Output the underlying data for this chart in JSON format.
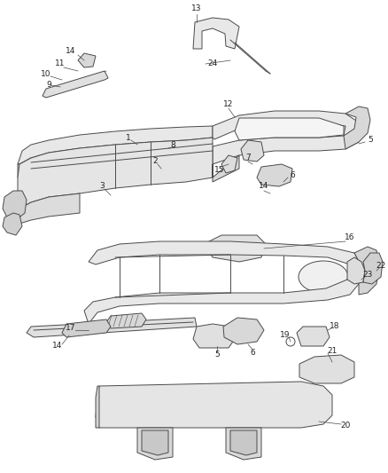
{
  "bg_color": "#ffffff",
  "line_color": "#4a4a4a",
  "label_color": "#222222",
  "figsize": [
    4.38,
    5.33
  ],
  "dpi": 100,
  "lw": 0.7,
  "fs": 6.5
}
